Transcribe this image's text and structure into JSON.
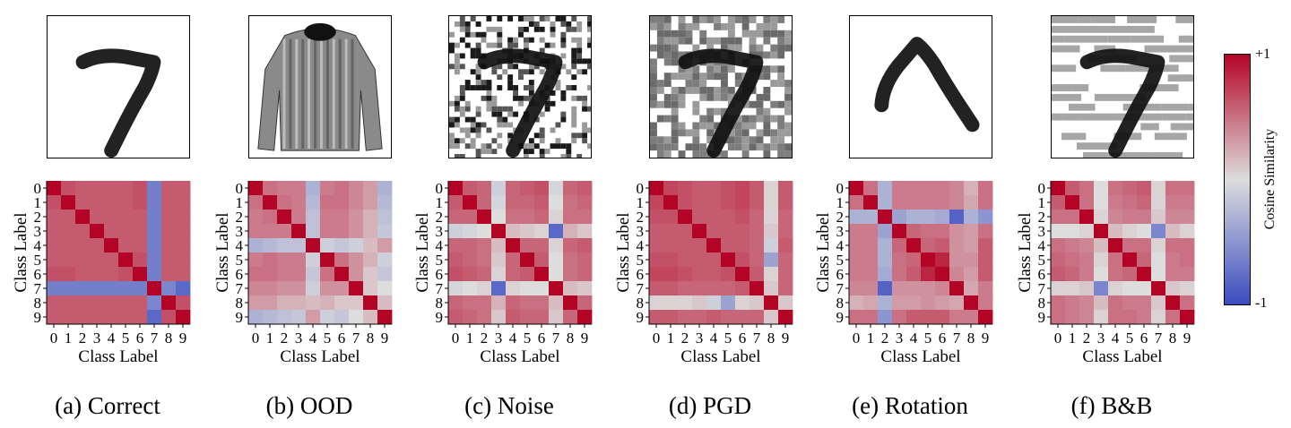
{
  "figure": {
    "axis_label": "Class Label",
    "tick_labels": [
      "0",
      "1",
      "2",
      "3",
      "4",
      "5",
      "6",
      "7",
      "8",
      "9"
    ],
    "colorbar": {
      "label": "Cosine Similarity",
      "max_label": "+1",
      "min_label": "-1",
      "min_color": "#3b4cc0",
      "mid_color": "#dddddd",
      "max_color": "#b40426"
    },
    "panels": [
      {
        "caption": "(a) Correct",
        "image": "digit-seven-clean"
      },
      {
        "caption": "(b) OOD",
        "image": "fashion-sweater"
      },
      {
        "caption": "(c) Noise",
        "image": "digit-seven-noisy"
      },
      {
        "caption": "(d) PGD",
        "image": "digit-seven-pgd"
      },
      {
        "caption": "(e) Rotation",
        "image": "digit-seven-rotated"
      },
      {
        "caption": "(f) B&B",
        "image": "digit-seven-bandb"
      }
    ]
  },
  "chart_data": [
    {
      "type": "heatmap",
      "title": "(a) Correct",
      "xlabel": "Class Label",
      "ylabel": "Class Label",
      "categories": [
        "0",
        "1",
        "2",
        "3",
        "4",
        "5",
        "6",
        "7",
        "8",
        "9"
      ],
      "range": [
        -1,
        1
      ],
      "values": [
        [
          1.0,
          0.65,
          0.6,
          0.6,
          0.6,
          0.6,
          0.65,
          -0.65,
          0.6,
          0.6
        ],
        [
          0.65,
          1.0,
          0.6,
          0.6,
          0.6,
          0.6,
          0.65,
          -0.65,
          0.6,
          0.6
        ],
        [
          0.6,
          0.6,
          1.0,
          0.6,
          0.6,
          0.6,
          0.6,
          -0.65,
          0.6,
          0.6
        ],
        [
          0.6,
          0.6,
          0.6,
          1.0,
          0.6,
          0.6,
          0.6,
          -0.65,
          0.6,
          0.6
        ],
        [
          0.6,
          0.6,
          0.6,
          0.6,
          1.0,
          0.6,
          0.6,
          -0.65,
          0.6,
          0.6
        ],
        [
          0.6,
          0.6,
          0.6,
          0.6,
          0.6,
          1.0,
          0.65,
          -0.65,
          0.6,
          0.6
        ],
        [
          0.65,
          0.65,
          0.6,
          0.6,
          0.6,
          0.65,
          1.0,
          -0.65,
          0.6,
          0.6
        ],
        [
          -0.65,
          -0.65,
          -0.65,
          -0.65,
          -0.65,
          -0.65,
          -0.65,
          1.0,
          -0.6,
          -0.8
        ],
        [
          0.6,
          0.6,
          0.6,
          0.6,
          0.6,
          0.6,
          0.6,
          -0.6,
          1.0,
          0.65
        ],
        [
          0.6,
          0.6,
          0.6,
          0.6,
          0.6,
          0.6,
          0.6,
          -0.8,
          0.65,
          1.0
        ]
      ]
    },
    {
      "type": "heatmap",
      "title": "(b) OOD",
      "xlabel": "Class Label",
      "ylabel": "Class Label",
      "categories": [
        "0",
        "1",
        "2",
        "3",
        "4",
        "5",
        "6",
        "7",
        "8",
        "9"
      ],
      "range": [
        -1,
        1
      ],
      "values": [
        [
          1.0,
          0.5,
          0.45,
          0.45,
          -0.3,
          0.45,
          0.5,
          0.4,
          0.3,
          -0.3
        ],
        [
          0.5,
          1.0,
          0.5,
          0.45,
          -0.25,
          0.5,
          0.5,
          0.4,
          0.3,
          -0.25
        ],
        [
          0.45,
          0.5,
          1.0,
          0.45,
          -0.2,
          0.45,
          0.45,
          0.35,
          0.2,
          -0.2
        ],
        [
          0.45,
          0.45,
          0.45,
          1.0,
          -0.2,
          0.45,
          0.45,
          0.35,
          0.2,
          -0.15
        ],
        [
          -0.3,
          -0.25,
          -0.2,
          -0.2,
          1.0,
          -0.1,
          -0.15,
          -0.1,
          0.15,
          0.3
        ],
        [
          0.45,
          0.5,
          0.45,
          0.45,
          -0.1,
          1.0,
          0.5,
          0.35,
          0.2,
          -0.1
        ],
        [
          0.5,
          0.5,
          0.45,
          0.45,
          -0.15,
          0.5,
          1.0,
          0.35,
          0.1,
          -0.15
        ],
        [
          0.4,
          0.4,
          0.35,
          0.35,
          -0.1,
          0.35,
          0.35,
          1.0,
          0.1,
          0.0
        ],
        [
          0.3,
          0.3,
          0.2,
          0.2,
          0.15,
          0.2,
          0.1,
          0.1,
          1.0,
          0.15
        ],
        [
          -0.3,
          -0.25,
          -0.2,
          -0.15,
          0.3,
          -0.1,
          -0.15,
          0.0,
          0.15,
          1.0
        ]
      ]
    },
    {
      "type": "heatmap",
      "title": "(c) Noise",
      "xlabel": "Class Label",
      "ylabel": "Class Label",
      "categories": [
        "0",
        "1",
        "2",
        "3",
        "4",
        "5",
        "6",
        "7",
        "8",
        "9"
      ],
      "range": [
        -1,
        1
      ],
      "values": [
        [
          1.0,
          0.6,
          0.55,
          -0.1,
          0.55,
          0.6,
          0.65,
          -0.05,
          0.55,
          0.6
        ],
        [
          0.6,
          1.0,
          0.55,
          -0.05,
          0.55,
          0.55,
          0.6,
          0.0,
          0.5,
          0.55
        ],
        [
          0.55,
          0.55,
          1.0,
          0.0,
          0.5,
          0.5,
          0.55,
          0.05,
          0.5,
          0.5
        ],
        [
          -0.1,
          -0.05,
          0.0,
          1.0,
          0.15,
          0.1,
          0.05,
          -0.8,
          0.2,
          0.1
        ],
        [
          0.55,
          0.55,
          0.5,
          0.15,
          1.0,
          0.55,
          0.55,
          0.05,
          0.55,
          0.6
        ],
        [
          0.6,
          0.55,
          0.5,
          0.1,
          0.55,
          1.0,
          0.6,
          0.0,
          0.5,
          0.55
        ],
        [
          0.65,
          0.6,
          0.55,
          0.05,
          0.55,
          0.6,
          1.0,
          0.0,
          0.5,
          0.55
        ],
        [
          -0.05,
          0.0,
          0.05,
          -0.8,
          0.05,
          0.0,
          0.0,
          1.0,
          0.15,
          0.1
        ],
        [
          0.55,
          0.5,
          0.5,
          0.2,
          0.55,
          0.5,
          0.5,
          0.15,
          1.0,
          0.55
        ],
        [
          0.6,
          0.55,
          0.5,
          0.1,
          0.6,
          0.55,
          0.55,
          0.1,
          0.55,
          1.0
        ]
      ]
    },
    {
      "type": "heatmap",
      "title": "(d) PGD",
      "xlabel": "Class Label",
      "ylabel": "Class Label",
      "categories": [
        "0",
        "1",
        "2",
        "3",
        "4",
        "5",
        "6",
        "7",
        "8",
        "9"
      ],
      "range": [
        -1,
        1
      ],
      "values": [
        [
          1.0,
          0.7,
          0.65,
          0.6,
          0.6,
          0.65,
          0.7,
          0.6,
          0.05,
          0.6
        ],
        [
          0.7,
          1.0,
          0.65,
          0.6,
          0.6,
          0.65,
          0.7,
          0.6,
          0.05,
          0.6
        ],
        [
          0.65,
          0.65,
          1.0,
          0.6,
          0.6,
          0.6,
          0.65,
          0.55,
          0.05,
          0.55
        ],
        [
          0.6,
          0.6,
          0.6,
          1.0,
          0.6,
          0.6,
          0.6,
          0.55,
          0.1,
          0.55
        ],
        [
          0.6,
          0.6,
          0.6,
          0.6,
          1.0,
          0.6,
          0.6,
          0.55,
          -0.1,
          0.6
        ],
        [
          0.65,
          0.65,
          0.6,
          0.6,
          0.6,
          1.0,
          0.65,
          0.55,
          -0.4,
          0.55
        ],
        [
          0.7,
          0.7,
          0.65,
          0.6,
          0.6,
          0.65,
          1.0,
          0.6,
          0.05,
          0.55
        ],
        [
          0.6,
          0.6,
          0.55,
          0.55,
          0.55,
          0.55,
          0.6,
          1.0,
          0.1,
          0.55
        ],
        [
          0.05,
          0.05,
          0.05,
          0.1,
          -0.1,
          -0.4,
          0.05,
          0.1,
          1.0,
          0.1
        ],
        [
          0.6,
          0.6,
          0.55,
          0.55,
          0.6,
          0.55,
          0.55,
          0.55,
          0.1,
          1.0
        ]
      ]
    },
    {
      "type": "heatmap",
      "title": "(e) Rotation",
      "xlabel": "Class Label",
      "ylabel": "Class Label",
      "categories": [
        "0",
        "1",
        "2",
        "3",
        "4",
        "5",
        "6",
        "7",
        "8",
        "9"
      ],
      "range": [
        -1,
        1
      ],
      "values": [
        [
          1.0,
          0.5,
          -0.3,
          0.45,
          0.45,
          0.45,
          0.45,
          0.4,
          0.2,
          0.5
        ],
        [
          0.5,
          1.0,
          -0.3,
          0.45,
          0.45,
          0.45,
          0.45,
          0.4,
          0.25,
          0.5
        ],
        [
          -0.3,
          -0.3,
          1.0,
          -0.4,
          -0.3,
          -0.3,
          -0.35,
          -0.85,
          -0.3,
          -0.5
        ],
        [
          0.45,
          0.45,
          -0.4,
          1.0,
          0.55,
          0.5,
          0.5,
          0.35,
          0.3,
          0.5
        ],
        [
          0.45,
          0.45,
          -0.3,
          0.55,
          1.0,
          0.55,
          0.6,
          0.35,
          0.3,
          0.6
        ],
        [
          0.45,
          0.45,
          -0.3,
          0.5,
          0.55,
          1.0,
          0.85,
          0.35,
          0.35,
          0.6
        ],
        [
          0.45,
          0.45,
          -0.35,
          0.5,
          0.6,
          0.85,
          1.0,
          0.4,
          0.3,
          0.6
        ],
        [
          0.4,
          0.4,
          -0.85,
          0.35,
          0.35,
          0.35,
          0.4,
          1.0,
          0.25,
          0.45
        ],
        [
          0.2,
          0.25,
          -0.3,
          0.3,
          0.3,
          0.35,
          0.3,
          0.25,
          1.0,
          0.45
        ],
        [
          0.5,
          0.5,
          -0.5,
          0.5,
          0.6,
          0.6,
          0.6,
          0.45,
          0.45,
          1.0
        ]
      ]
    },
    {
      "type": "heatmap",
      "title": "(f) B&B",
      "xlabel": "Class Label",
      "ylabel": "Class Label",
      "categories": [
        "0",
        "1",
        "2",
        "3",
        "4",
        "5",
        "6",
        "7",
        "8",
        "9"
      ],
      "range": [
        -1,
        1
      ],
      "values": [
        [
          1.0,
          0.6,
          0.5,
          0.0,
          0.5,
          0.55,
          0.6,
          0.05,
          0.5,
          0.5
        ],
        [
          0.6,
          1.0,
          0.5,
          0.0,
          0.45,
          0.5,
          0.55,
          0.05,
          0.45,
          0.45
        ],
        [
          0.5,
          0.5,
          1.0,
          0.05,
          0.4,
          0.45,
          0.45,
          0.1,
          0.4,
          0.4
        ],
        [
          0.0,
          0.0,
          0.05,
          1.0,
          0.15,
          0.05,
          0.0,
          -0.6,
          0.15,
          0.05
        ],
        [
          0.5,
          0.45,
          0.4,
          0.15,
          1.0,
          0.5,
          0.5,
          0.05,
          0.5,
          0.5
        ],
        [
          0.55,
          0.5,
          0.45,
          0.05,
          0.5,
          1.0,
          0.55,
          0.0,
          0.45,
          0.5
        ],
        [
          0.6,
          0.55,
          0.45,
          0.0,
          0.5,
          0.55,
          1.0,
          0.0,
          0.45,
          0.45
        ],
        [
          0.05,
          0.05,
          0.1,
          -0.6,
          0.05,
          0.0,
          0.0,
          1.0,
          0.1,
          0.05
        ],
        [
          0.5,
          0.45,
          0.4,
          0.15,
          0.5,
          0.45,
          0.45,
          0.1,
          1.0,
          0.5
        ],
        [
          0.5,
          0.45,
          0.4,
          0.05,
          0.5,
          0.5,
          0.45,
          0.05,
          0.5,
          1.0
        ]
      ]
    }
  ]
}
